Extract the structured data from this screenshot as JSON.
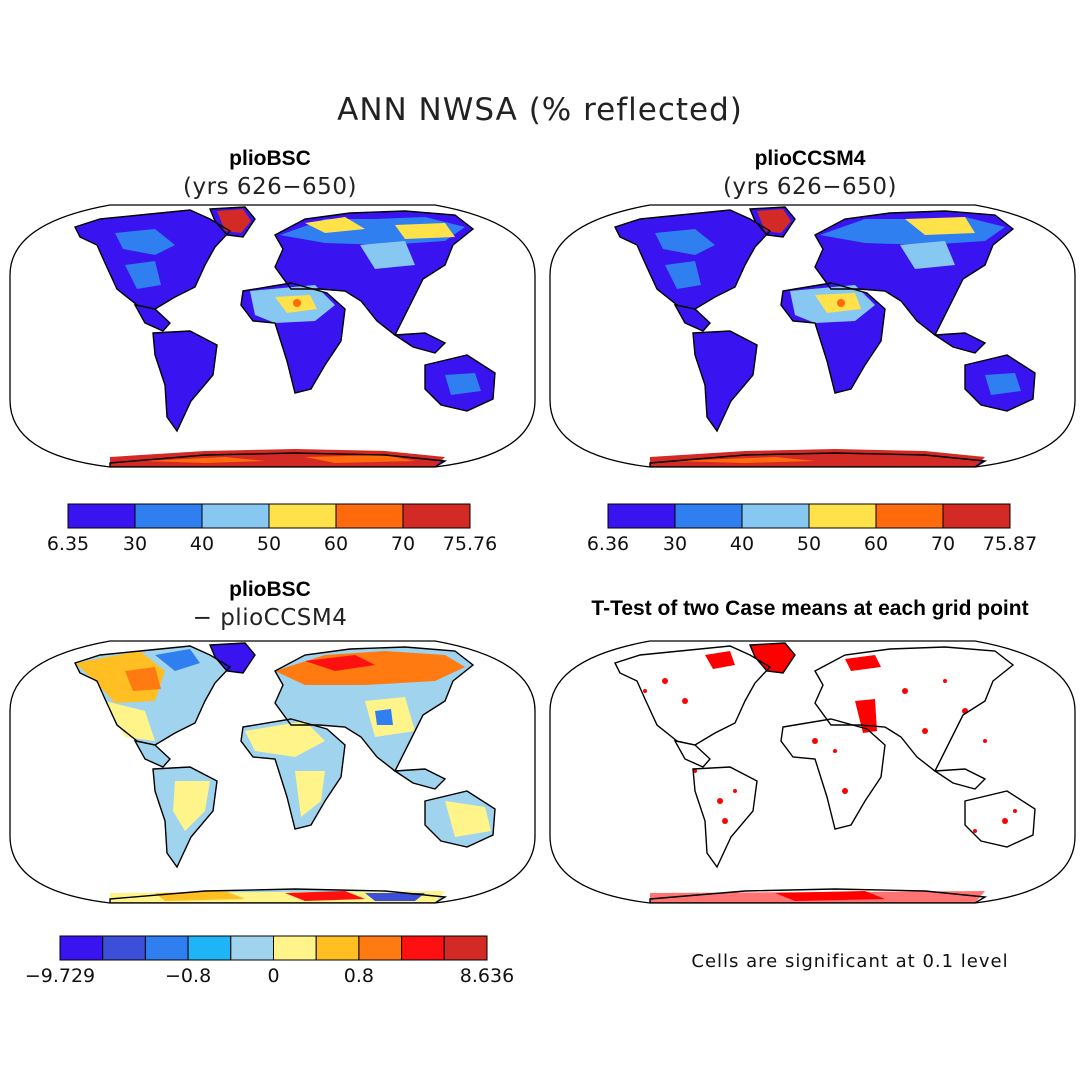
{
  "main_title": "ANN NWSA (% reflected)",
  "panels": [
    {
      "title": "plioBSC",
      "subtitle": "(yrs 626−650)"
    },
    {
      "title": "plioCCSM4",
      "subtitle": "(yrs 626−650)"
    },
    {
      "title": "plioBSC",
      "subtitle": "− plioCCSM4"
    },
    {
      "title": "T-Test of two Case means at each grid point",
      "subtitle": ""
    }
  ],
  "colorbars": [
    {
      "colors": [
        "#3a14f0",
        "#2f7ff0",
        "#87c8f2",
        "#ffe24a",
        "#ff6a0a",
        "#d42a26"
      ],
      "labels": [
        "6.35",
        "30",
        "40",
        "50",
        "60",
        "70",
        "75.76"
      ]
    },
    {
      "colors": [
        "#3a14f0",
        "#2f7ff0",
        "#87c8f2",
        "#ffe24a",
        "#ff6a0a",
        "#d42a26"
      ],
      "labels": [
        "6.36",
        "30",
        "40",
        "50",
        "60",
        "70",
        "75.87"
      ]
    },
    {
      "colors": [
        "#3a14f0",
        "#3b4fd8",
        "#2f7ff0",
        "#1fb4f5",
        "#9fd3ee",
        "#fff48a",
        "#ffbf22",
        "#ff7a10",
        "#ff1010",
        "#d42a26"
      ],
      "labels": [
        "−9.729",
        "−0.8",
        "0",
        "0.8",
        "8.636"
      ]
    }
  ],
  "footnote": "Cells are significant at 0.1 level",
  "colors": {
    "land_blue": "#3a14f0",
    "mid_blue": "#2f7ff0",
    "light_blue": "#87c8f2",
    "yellow": "#ffe24a",
    "orange": "#ff6a0a",
    "red": "#d42a26",
    "significance_red": "#ff0000"
  }
}
